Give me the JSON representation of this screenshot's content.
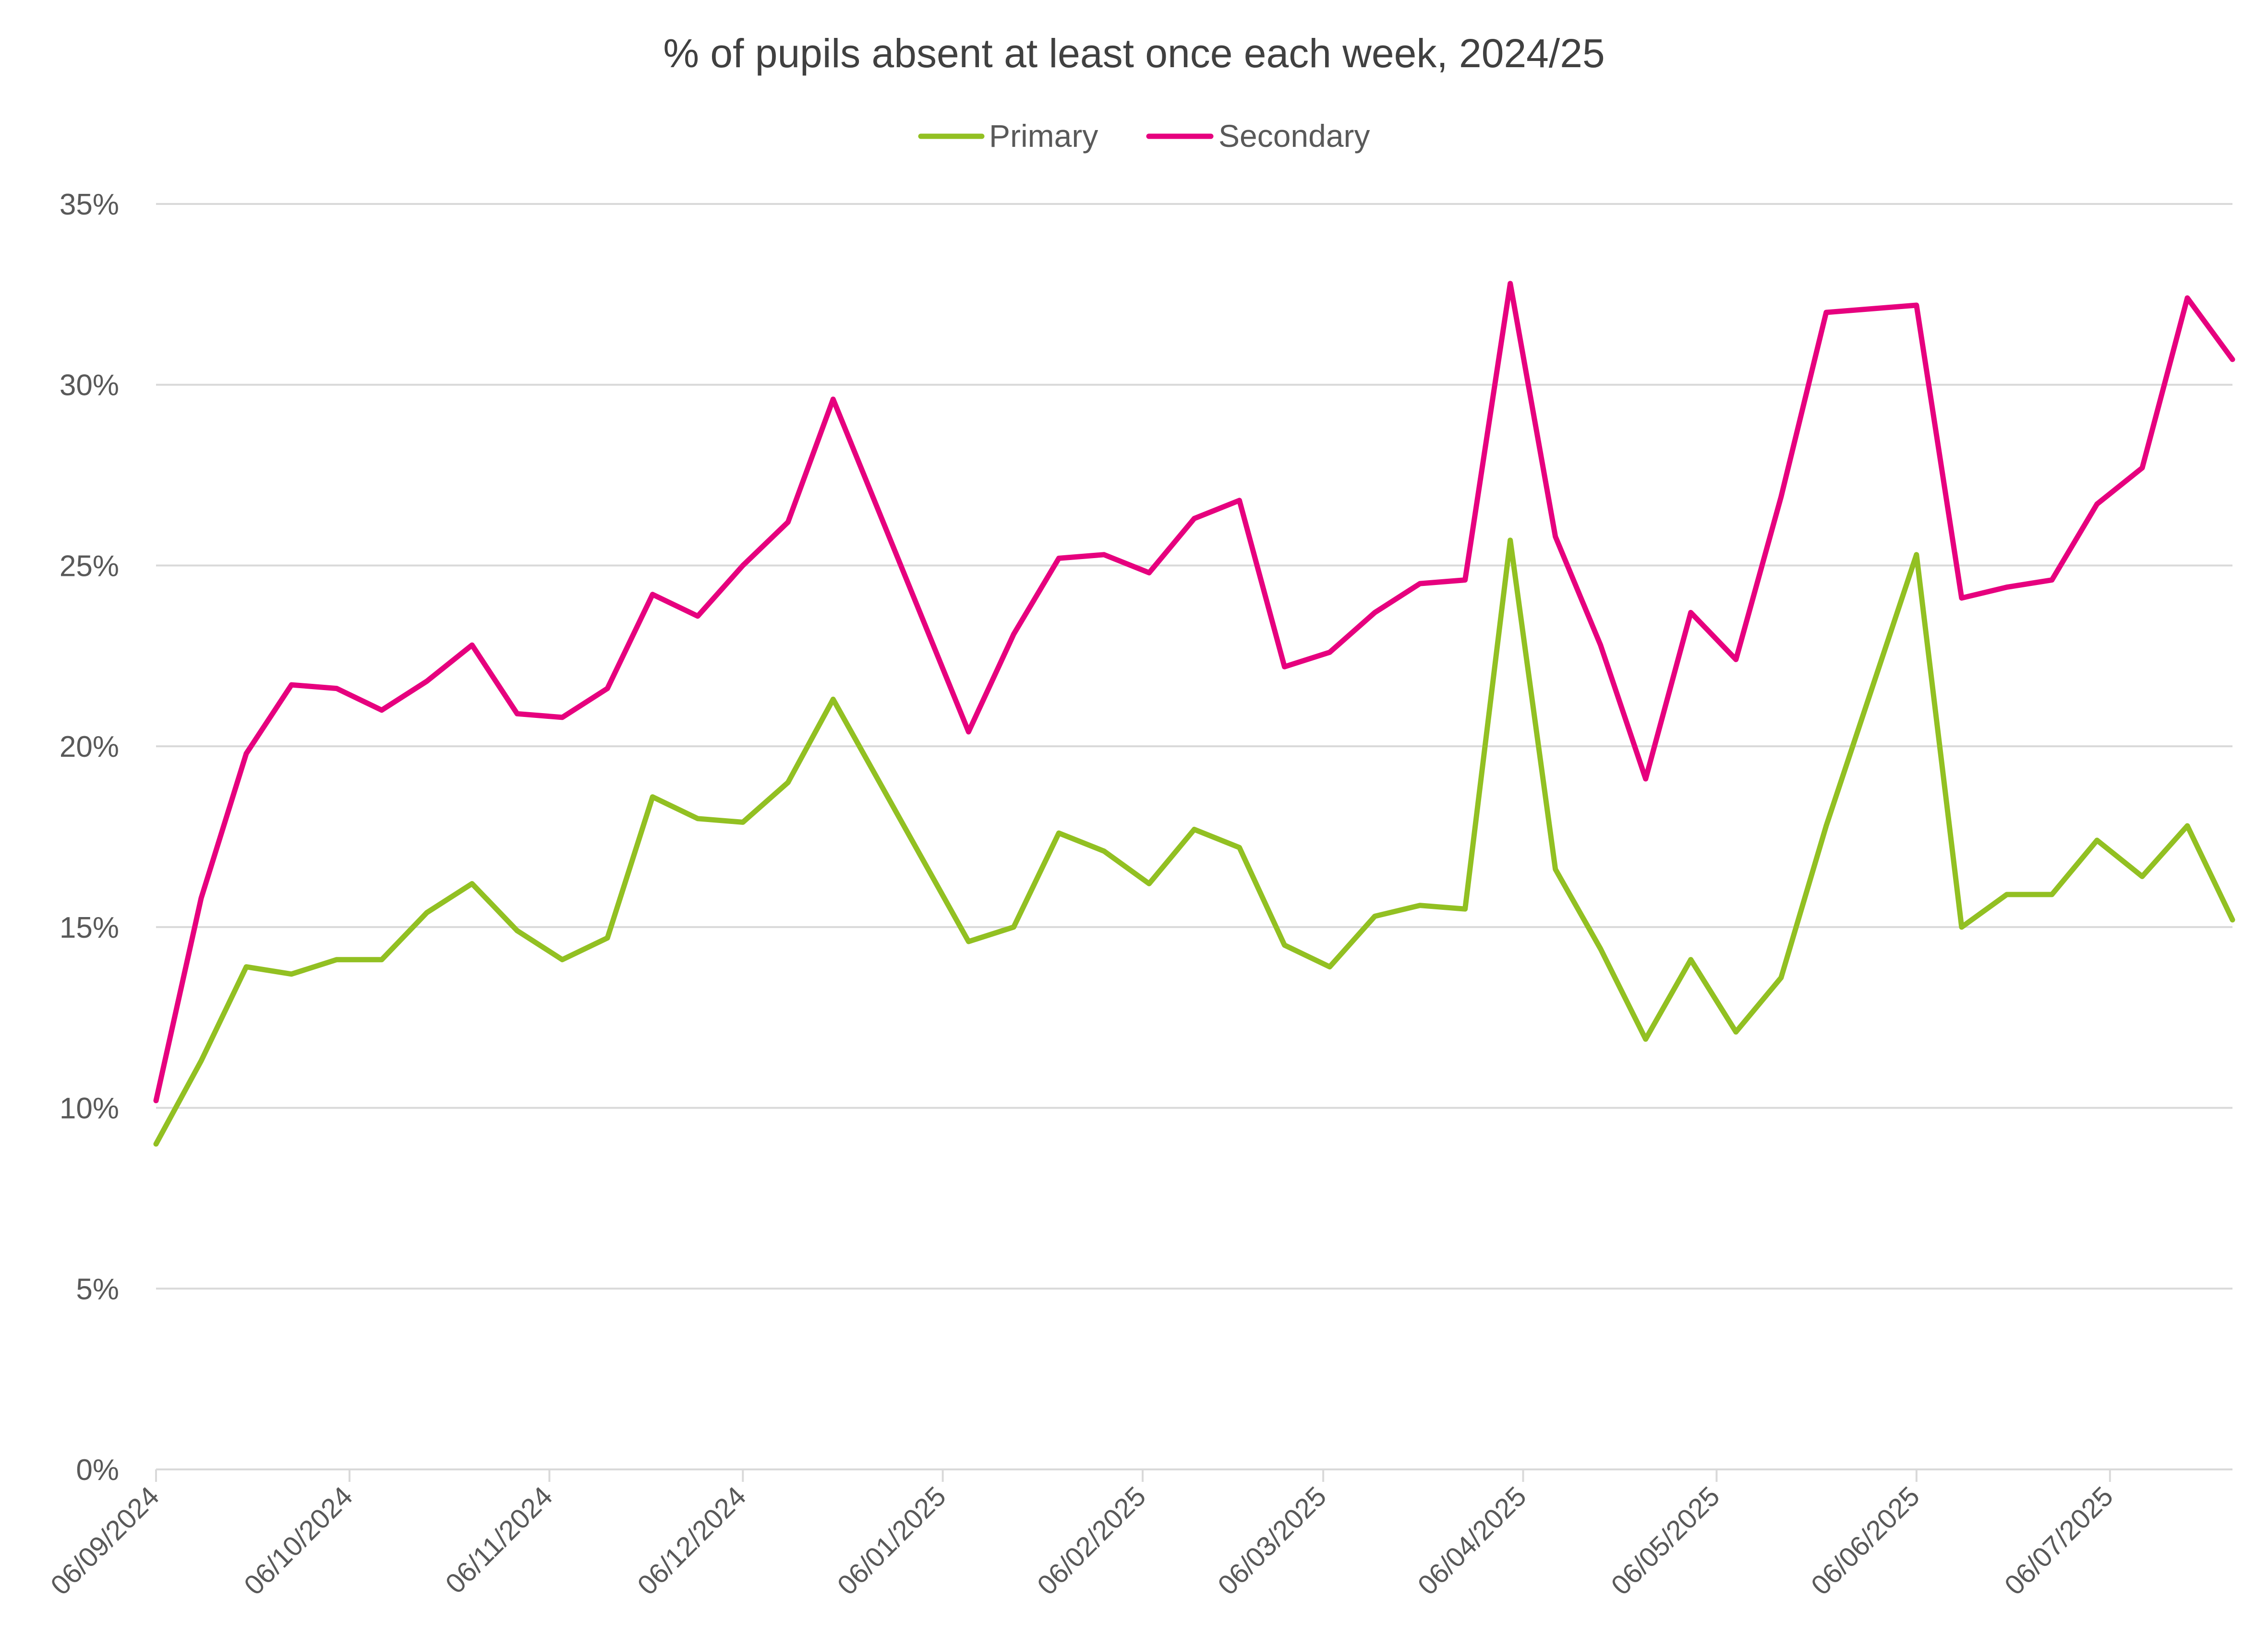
{
  "chart_data": {
    "type": "line",
    "title": "% of pupils absent at least once each week, 2024/25",
    "xlabel": "",
    "ylabel": "",
    "ylim": [
      0,
      35
    ],
    "y_ticks": [
      "0%",
      "5%",
      "10%",
      "15%",
      "20%",
      "25%",
      "30%",
      "35%"
    ],
    "y_tick_values": [
      0,
      5,
      10,
      15,
      20,
      25,
      30,
      35
    ],
    "x_range": [
      "2024-09-06",
      "2025-07-25"
    ],
    "x_ticks": [
      "06/09/2024",
      "06/10/2024",
      "06/11/2024",
      "06/12/2024",
      "06/01/2025",
      "06/02/2025",
      "06/03/2025",
      "06/04/2025",
      "06/05/2025",
      "06/06/2025",
      "06/07/2025"
    ],
    "x_tick_dates": [
      "2024-09-06",
      "2024-10-06",
      "2024-11-06",
      "2024-12-06",
      "2025-01-06",
      "2025-02-06",
      "2025-03-06",
      "2025-04-06",
      "2025-05-06",
      "2025-06-06",
      "2025-07-06"
    ],
    "legend_position": "top-center",
    "grid": true,
    "x": [
      "2024-09-06",
      "2024-09-13",
      "2024-09-20",
      "2024-09-27",
      "2024-10-04",
      "2024-10-11",
      "2024-10-18",
      "2024-10-25",
      "2024-11-01",
      "2024-11-08",
      "2024-11-15",
      "2024-11-22",
      "2024-11-29",
      "2024-12-06",
      "2024-12-13",
      "2024-12-20",
      "2025-01-10",
      "2025-01-17",
      "2025-01-24",
      "2025-01-31",
      "2025-02-07",
      "2025-02-14",
      "2025-02-21",
      "2025-02-28",
      "2025-03-07",
      "2025-03-14",
      "2025-03-21",
      "2025-03-28",
      "2025-04-04",
      "2025-04-11",
      "2025-04-18",
      "2025-04-25",
      "2025-05-02",
      "2025-05-09",
      "2025-05-16",
      "2025-05-23",
      "2025-06-06",
      "2025-06-13",
      "2025-06-20",
      "2025-06-27",
      "2025-07-04",
      "2025-07-11",
      "2025-07-18",
      "2025-07-25"
    ],
    "series": [
      {
        "name": "Primary",
        "color": "#92c022",
        "values": [
          9.0,
          11.3,
          13.9,
          13.7,
          14.1,
          14.1,
          15.4,
          16.2,
          14.9,
          14.1,
          14.7,
          18.6,
          18.0,
          17.9,
          19.0,
          21.3,
          14.6,
          15.0,
          17.6,
          17.1,
          16.2,
          17.7,
          17.2,
          14.5,
          13.9,
          15.3,
          15.6,
          15.5,
          25.7,
          16.6,
          14.4,
          11.9,
          14.1,
          12.1,
          13.6,
          17.8,
          25.3,
          15.0,
          15.9,
          15.9,
          17.4,
          16.4,
          17.8,
          15.2
        ]
      },
      {
        "name": "Secondary",
        "color": "#e6007e",
        "values": [
          10.2,
          15.8,
          19.8,
          21.7,
          21.6,
          21.0,
          21.8,
          22.8,
          20.9,
          20.8,
          21.6,
          24.2,
          23.6,
          25.0,
          26.2,
          29.6,
          20.4,
          23.1,
          25.2,
          25.3,
          24.8,
          26.3,
          26.8,
          22.2,
          22.6,
          23.7,
          24.5,
          24.6,
          32.8,
          25.8,
          22.8,
          19.1,
          23.7,
          22.4,
          26.9,
          32.0,
          32.2,
          24.1,
          24.4,
          24.6,
          26.7,
          27.7,
          32.4,
          30.7
        ]
      }
    ]
  }
}
